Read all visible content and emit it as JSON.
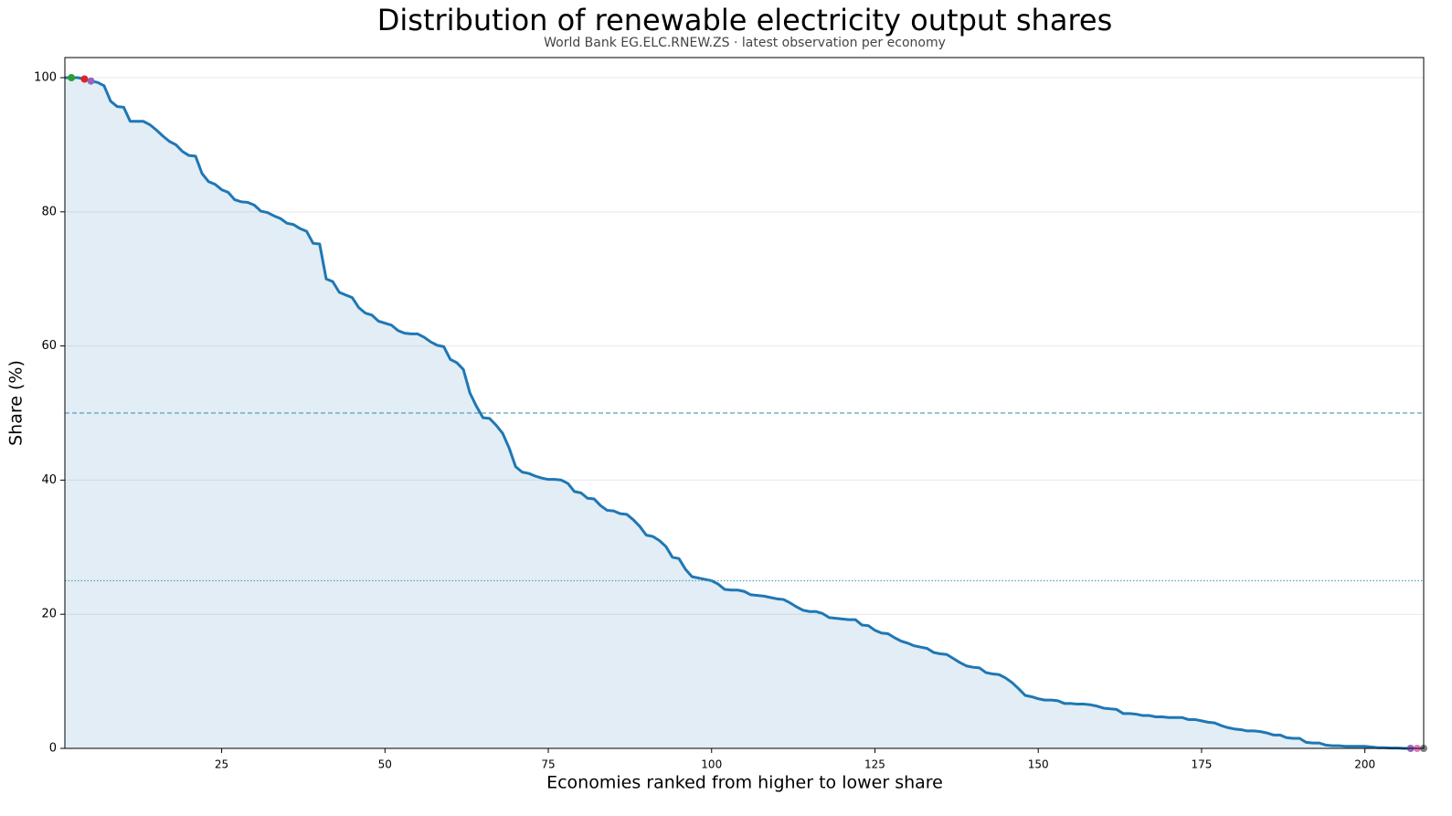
{
  "chart_data": {
    "type": "line",
    "title": "Distribution of renewable electricity output shares",
    "subtitle": "World Bank EG.ELC.RNEW.ZS · latest observation per economy",
    "x_label": "Economies ranked from higher to lower share",
    "y_label": "Share (%)",
    "x": [
      1,
      2,
      3,
      4,
      5,
      6,
      7,
      8,
      9,
      10,
      11,
      12,
      13,
      14,
      15,
      16,
      17,
      18,
      19,
      20,
      21,
      22,
      23,
      24,
      25,
      26,
      27,
      28,
      29,
      30,
      31,
      32,
      33,
      34,
      35,
      36,
      37,
      38,
      39,
      40,
      41,
      42,
      43,
      44,
      45,
      46,
      47,
      48,
      49,
      50,
      51,
      52,
      53,
      54,
      55,
      56,
      57,
      58,
      59,
      60,
      61,
      62,
      63,
      64,
      65,
      66,
      67,
      68,
      69,
      70,
      71,
      72,
      73,
      74,
      75,
      76,
      77,
      78,
      79,
      80,
      81,
      82,
      83,
      84,
      85,
      86,
      87,
      88,
      89,
      90,
      91,
      92,
      93,
      94,
      95,
      96,
      97,
      98,
      99,
      100,
      101,
      102,
      103,
      104,
      105,
      106,
      107,
      108,
      109,
      110,
      111,
      112,
      113,
      114,
      115,
      116,
      117,
      118,
      119,
      120,
      121,
      122,
      123,
      124,
      125,
      126,
      127,
      128,
      129,
      130,
      131,
      132,
      133,
      134,
      135,
      136,
      137,
      138,
      139,
      140,
      141,
      142,
      143,
      144,
      145,
      146,
      147,
      148,
      149,
      150,
      151,
      152,
      153,
      154,
      155,
      156,
      157,
      158,
      159,
      160,
      161,
      162,
      163,
      164,
      165,
      166,
      167,
      168,
      169,
      170,
      171,
      172,
      173,
      174,
      175,
      176,
      177,
      178,
      179,
      180,
      181,
      182,
      183,
      184,
      185,
      186,
      187,
      188,
      189,
      190,
      191,
      192,
      193,
      194,
      195,
      196,
      197,
      198,
      199,
      200,
      201,
      202,
      203,
      204,
      205,
      206,
      207,
      208,
      209
    ],
    "series": [
      {
        "name": "Share",
        "color": "#1f77b4",
        "values": [
          100,
          100,
          100,
          99.8,
          99.5,
          99.3,
          98.8,
          96.5,
          95.7,
          95.6,
          93.5,
          93.5,
          93.5,
          93.0,
          92.2,
          91.3,
          90.5,
          90.0,
          89.0,
          88.4,
          88.3,
          85.7,
          84.5,
          84.1,
          83.3,
          82.9,
          81.8,
          81.5,
          81.4,
          81.0,
          80.1,
          79.9,
          79.4,
          79.0,
          78.3,
          78.1,
          77.5,
          77.1,
          75.3,
          75.2,
          70.0,
          69.6,
          68.0,
          67.6,
          67.2,
          65.7,
          64.9,
          64.6,
          63.7,
          63.4,
          63.1,
          62.3,
          61.9,
          61.8,
          61.8,
          61.3,
          60.6,
          60.1,
          59.9,
          58.0,
          57.5,
          56.5,
          53.0,
          51.0,
          49.3,
          49.2,
          48.2,
          47.0,
          44.8,
          42.0,
          41.2,
          41.0,
          40.6,
          40.3,
          40.1,
          40.1,
          40.0,
          39.5,
          38.3,
          38.1,
          37.3,
          37.2,
          36.2,
          35.5,
          35.4,
          35.0,
          34.9,
          34.1,
          33.1,
          31.8,
          31.6,
          31.0,
          30.1,
          28.5,
          28.3,
          26.7,
          25.6,
          25.4,
          25.2,
          25.0,
          24.5,
          23.7,
          23.6,
          23.6,
          23.4,
          22.9,
          22.8,
          22.7,
          22.5,
          22.3,
          22.2,
          21.7,
          21.1,
          20.6,
          20.4,
          20.4,
          20.1,
          19.5,
          19.4,
          19.3,
          19.2,
          19.2,
          18.4,
          18.3,
          17.6,
          17.2,
          17.1,
          16.5,
          16.0,
          15.7,
          15.3,
          15.1,
          14.9,
          14.3,
          14.1,
          14.0,
          13.4,
          12.8,
          12.3,
          12.1,
          12.0,
          11.3,
          11.1,
          11.0,
          10.5,
          9.8,
          8.9,
          7.9,
          7.7,
          7.4,
          7.2,
          7.2,
          7.1,
          6.7,
          6.7,
          6.6,
          6.6,
          6.5,
          6.3,
          6.0,
          5.9,
          5.8,
          5.2,
          5.2,
          5.1,
          4.9,
          4.9,
          4.7,
          4.7,
          4.6,
          4.6,
          4.6,
          4.3,
          4.3,
          4.1,
          3.9,
          3.8,
          3.4,
          3.1,
          2.9,
          2.8,
          2.6,
          2.6,
          2.5,
          2.3,
          2.0,
          2.0,
          1.6,
          1.5,
          1.5,
          0.9,
          0.8,
          0.8,
          0.5,
          0.4,
          0.4,
          0.3,
          0.3,
          0.3,
          0.3,
          0.2,
          0.1,
          0.1,
          0.05,
          0.05,
          0,
          0,
          0,
          0
        ]
      }
    ],
    "fill_area": true,
    "highlight_points": [
      {
        "x": 2,
        "y": 100,
        "color": "#2ca02c"
      },
      {
        "x": 4,
        "y": 99.8,
        "color": "#d62728"
      },
      {
        "x": 5,
        "y": 99.5,
        "color": "#9467bd"
      },
      {
        "x": 207,
        "y": 0,
        "color": "#9467bd"
      },
      {
        "x": 208,
        "y": 0,
        "color": "#e377c2"
      },
      {
        "x": 209,
        "y": 0,
        "color": "#7f7f7f"
      }
    ],
    "reference_lines": [
      {
        "value": 50,
        "style": "dashed"
      },
      {
        "value": 25,
        "style": "dotted"
      }
    ],
    "xlim": [
      1,
      209
    ],
    "ylim": [
      0,
      103
    ],
    "xticks": [
      25,
      50,
      75,
      100,
      125,
      150,
      175,
      200
    ],
    "yticks": [
      0,
      20,
      40,
      60,
      80,
      100
    ],
    "grid": true
  }
}
